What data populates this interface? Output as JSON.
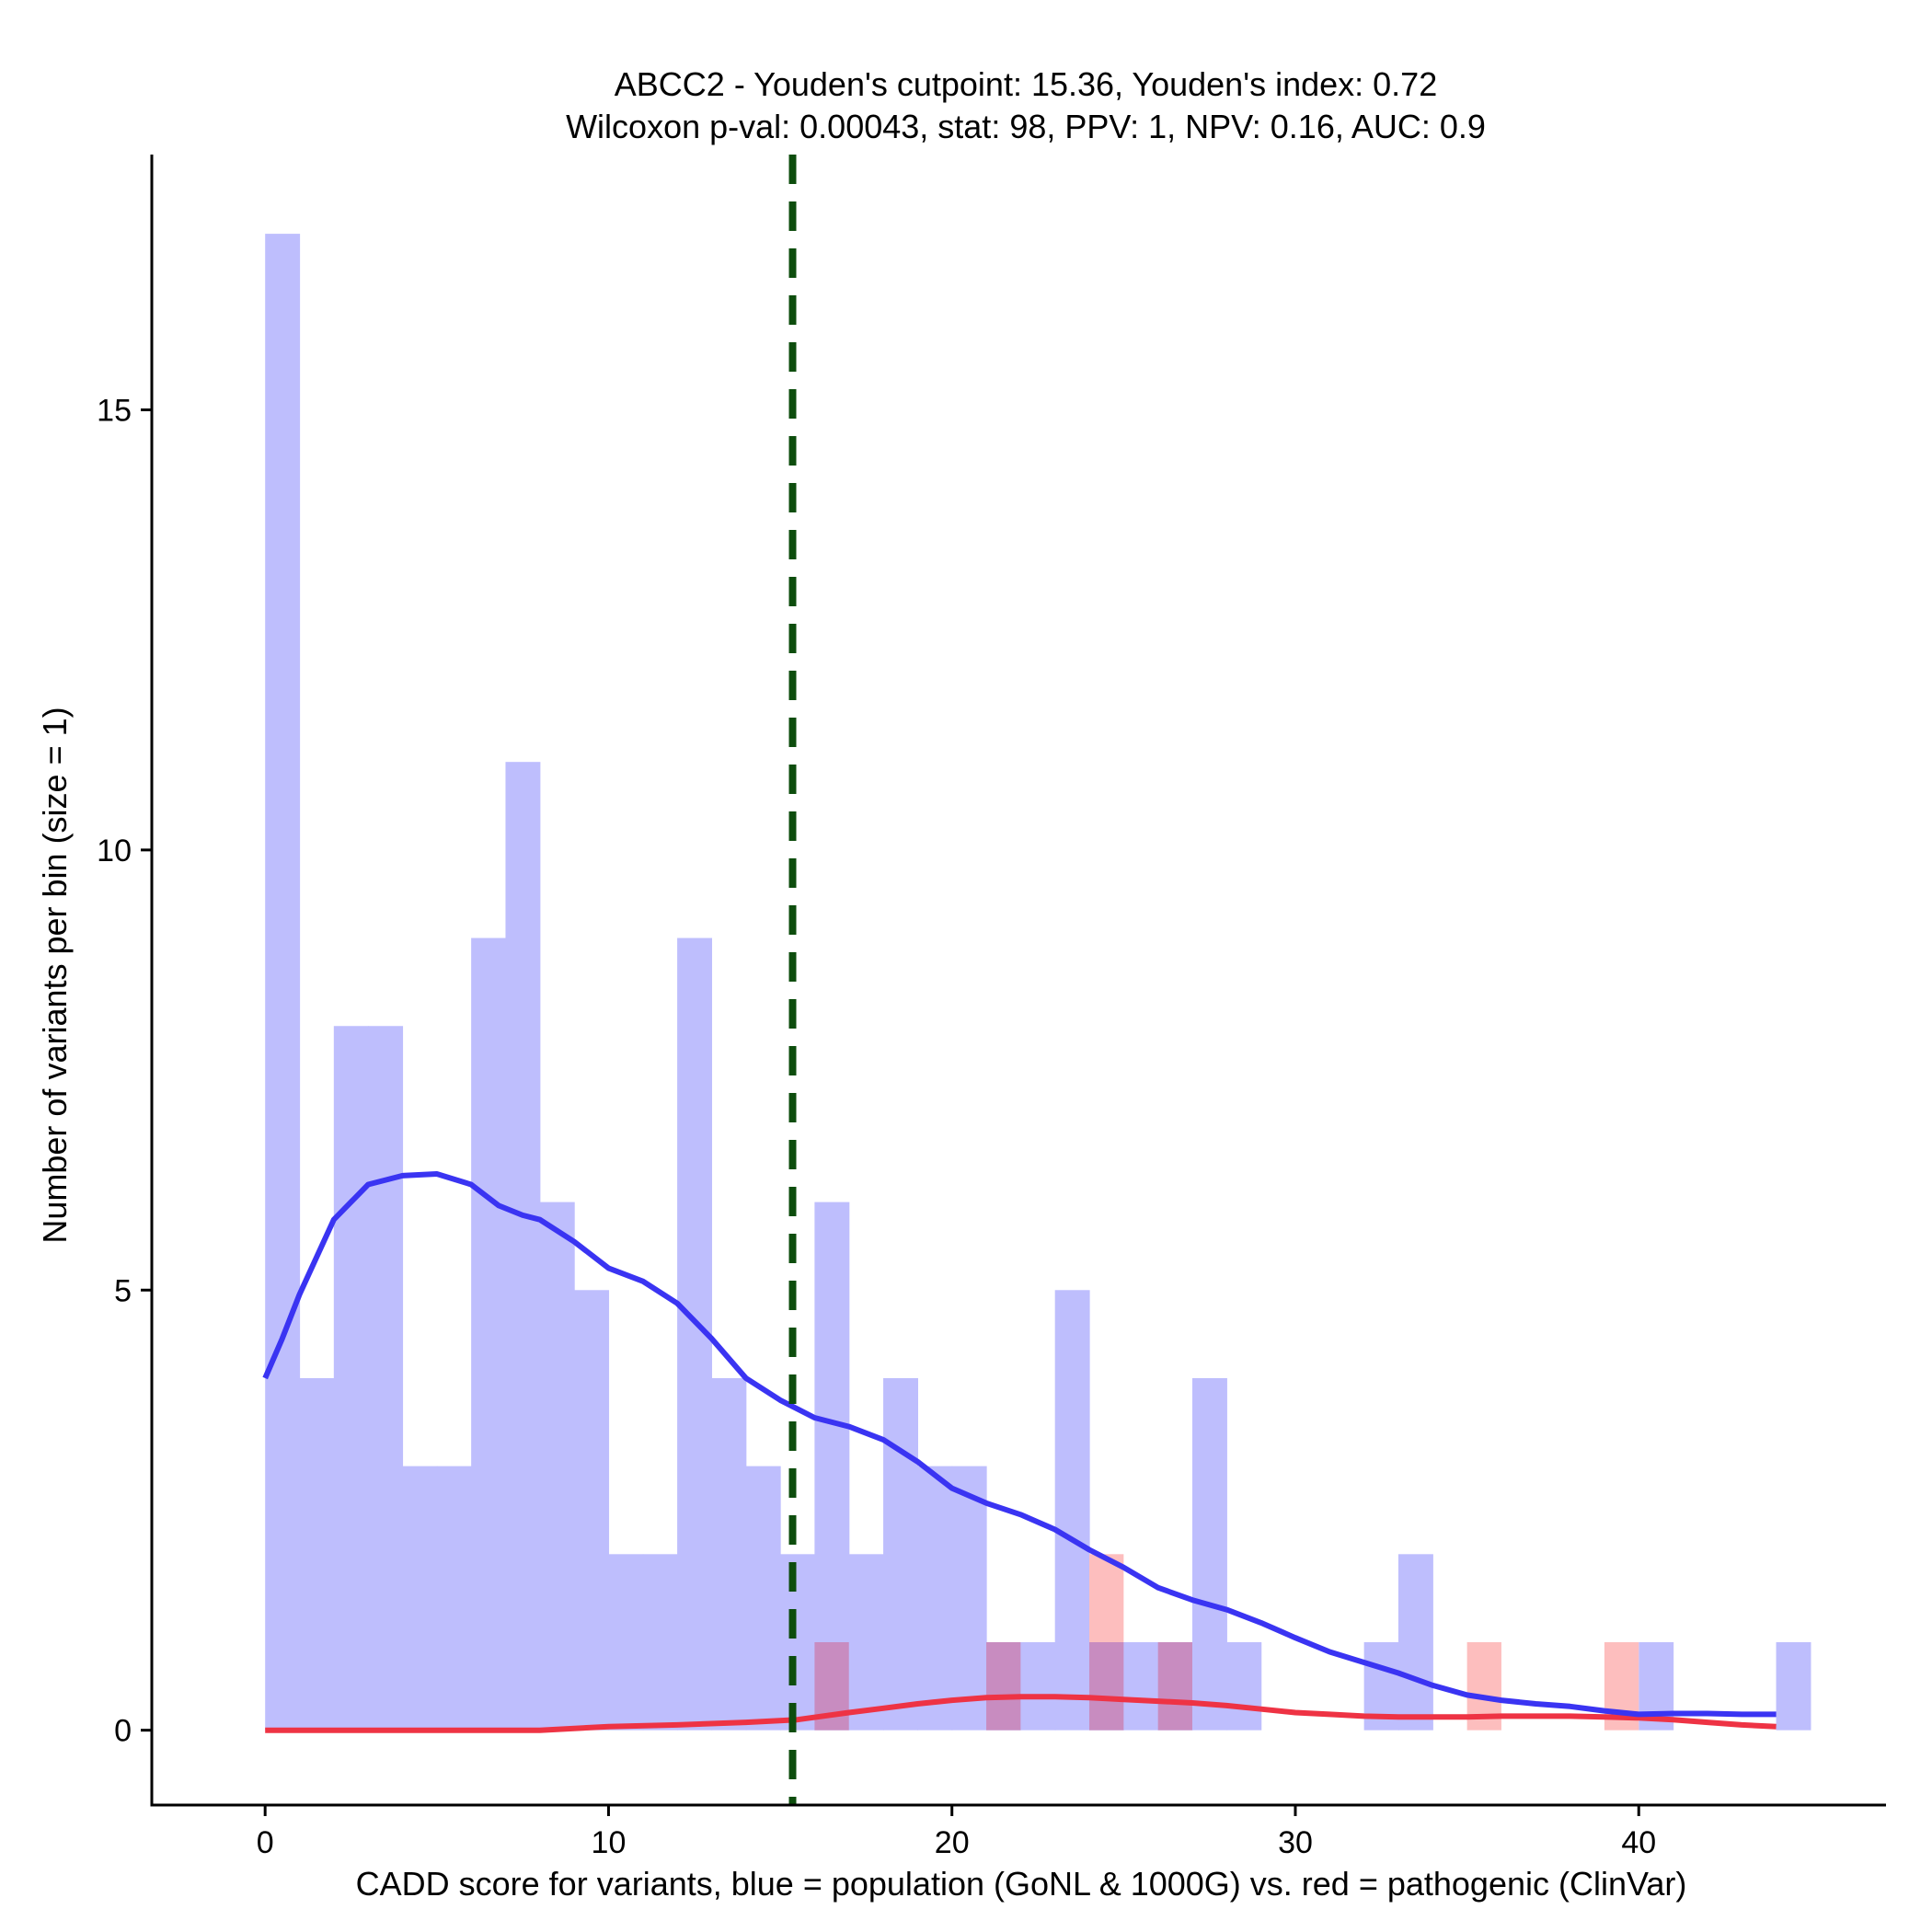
{
  "chart_data": {
    "type": "histogram",
    "title_line1": "ABCC2 - Youden's cutpoint: 15.36, Youden's index: 0.72",
    "title_line2": "Wilcoxon p-val: 0.00043, stat: 98, PPV: 1, NPV: 0.16, AUC: 0.9",
    "xlabel": "CADD score for variants, blue = population (GoNL & 1000G) vs. red = pathogenic (ClinVar)",
    "ylabel": "Number of variants per bin (size = 1)",
    "xlim": [
      -3.3,
      47.2
    ],
    "ylim": [
      -0.85,
      17.9
    ],
    "x_ticks": [
      0,
      10,
      20,
      30,
      40
    ],
    "x_tick_labels": [
      "0",
      "10",
      "20",
      "30",
      "40"
    ],
    "y_ticks": [
      0,
      5,
      10,
      15
    ],
    "y_tick_labels": [
      "0",
      "5",
      "10",
      "15"
    ],
    "bin_size": 1,
    "cutpoint": 15.36,
    "colors": {
      "population_fill": "#bebefd",
      "pathogenic_fill": "#fdbebe",
      "overlap_fill": "#c88cc0",
      "population_line": "#3a34f2",
      "pathogenic_line": "#ee3344",
      "cutpoint_line": "#0d4d0d"
    },
    "series": [
      {
        "name": "population",
        "bins": [
          {
            "x": 0,
            "count": 17
          },
          {
            "x": 1,
            "count": 4
          },
          {
            "x": 2,
            "count": 8
          },
          {
            "x": 3,
            "count": 8
          },
          {
            "x": 4,
            "count": 3
          },
          {
            "x": 5,
            "count": 3
          },
          {
            "x": 6,
            "count": 9
          },
          {
            "x": 7,
            "count": 11
          },
          {
            "x": 8,
            "count": 6
          },
          {
            "x": 9,
            "count": 5
          },
          {
            "x": 10,
            "count": 2
          },
          {
            "x": 11,
            "count": 2
          },
          {
            "x": 12,
            "count": 9
          },
          {
            "x": 13,
            "count": 4
          },
          {
            "x": 14,
            "count": 3
          },
          {
            "x": 15,
            "count": 2
          },
          {
            "x": 16,
            "count": 6
          },
          {
            "x": 17,
            "count": 2
          },
          {
            "x": 18,
            "count": 4
          },
          {
            "x": 19,
            "count": 3
          },
          {
            "x": 20,
            "count": 3
          },
          {
            "x": 21,
            "count": 1
          },
          {
            "x": 22,
            "count": 1
          },
          {
            "x": 23,
            "count": 5
          },
          {
            "x": 24,
            "count": 1
          },
          {
            "x": 25,
            "count": 1
          },
          {
            "x": 26,
            "count": 1
          },
          {
            "x": 27,
            "count": 4
          },
          {
            "x": 28,
            "count": 1
          },
          {
            "x": 32,
            "count": 1
          },
          {
            "x": 33,
            "count": 2
          },
          {
            "x": 40,
            "count": 1
          },
          {
            "x": 44,
            "count": 1
          }
        ],
        "density_curve": [
          [
            0,
            4.0
          ],
          [
            0.5,
            4.45
          ],
          [
            1,
            4.95
          ],
          [
            2,
            5.8
          ],
          [
            3,
            6.2
          ],
          [
            4,
            6.3
          ],
          [
            5,
            6.32
          ],
          [
            6,
            6.2
          ],
          [
            6.8,
            5.96
          ],
          [
            7.5,
            5.85
          ],
          [
            8,
            5.8
          ],
          [
            9,
            5.55
          ],
          [
            10,
            5.25
          ],
          [
            11,
            5.1
          ],
          [
            12,
            4.85
          ],
          [
            13,
            4.45
          ],
          [
            14,
            4.0
          ],
          [
            15,
            3.75
          ],
          [
            16,
            3.55
          ],
          [
            17,
            3.45
          ],
          [
            18,
            3.3
          ],
          [
            19,
            3.05
          ],
          [
            20,
            2.75
          ],
          [
            21,
            2.58
          ],
          [
            22,
            2.45
          ],
          [
            23,
            2.28
          ],
          [
            24,
            2.05
          ],
          [
            25,
            1.85
          ],
          [
            26,
            1.62
          ],
          [
            27,
            1.48
          ],
          [
            28,
            1.37
          ],
          [
            29,
            1.22
          ],
          [
            30,
            1.05
          ],
          [
            31,
            0.89
          ],
          [
            32,
            0.77
          ],
          [
            33,
            0.65
          ],
          [
            34,
            0.51
          ],
          [
            35,
            0.4
          ],
          [
            36,
            0.34
          ],
          [
            37,
            0.3
          ],
          [
            38,
            0.27
          ],
          [
            39,
            0.22
          ],
          [
            40,
            0.18
          ],
          [
            41,
            0.19
          ],
          [
            42,
            0.19
          ],
          [
            43,
            0.18
          ],
          [
            44,
            0.18
          ]
        ]
      },
      {
        "name": "pathogenic",
        "bins": [
          {
            "x": 16,
            "count": 1
          },
          {
            "x": 21,
            "count": 1
          },
          {
            "x": 24,
            "count": 2
          },
          {
            "x": 26,
            "count": 1
          },
          {
            "x": 35,
            "count": 1
          },
          {
            "x": 39,
            "count": 1
          }
        ],
        "density_curve": [
          [
            0,
            0.0
          ],
          [
            4,
            0.0
          ],
          [
            8,
            0.0
          ],
          [
            10,
            0.04
          ],
          [
            12,
            0.06
          ],
          [
            14,
            0.09
          ],
          [
            15.5,
            0.12
          ],
          [
            17,
            0.2
          ],
          [
            18,
            0.25
          ],
          [
            19,
            0.3
          ],
          [
            20,
            0.34
          ],
          [
            21,
            0.37
          ],
          [
            22,
            0.38
          ],
          [
            23,
            0.38
          ],
          [
            24,
            0.37
          ],
          [
            25,
            0.35
          ],
          [
            26,
            0.33
          ],
          [
            27,
            0.31
          ],
          [
            28,
            0.28
          ],
          [
            29,
            0.24
          ],
          [
            30,
            0.2
          ],
          [
            31,
            0.18
          ],
          [
            32,
            0.16
          ],
          [
            33,
            0.15
          ],
          [
            34,
            0.15
          ],
          [
            35,
            0.15
          ],
          [
            36,
            0.16
          ],
          [
            37,
            0.16
          ],
          [
            38,
            0.16
          ],
          [
            39,
            0.15
          ],
          [
            40,
            0.14
          ],
          [
            41,
            0.12
          ],
          [
            42,
            0.09
          ],
          [
            43,
            0.06
          ],
          [
            44,
            0.04
          ]
        ]
      }
    ]
  }
}
